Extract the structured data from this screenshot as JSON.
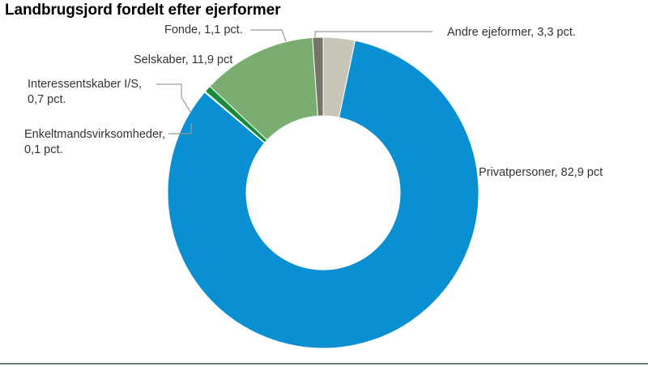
{
  "chart_data": {
    "type": "pie",
    "variant": "donut",
    "title": "Landbrugsjord fordelt efter ejerformer",
    "series": [
      {
        "name": "Andre ejeformer",
        "value": 3.3,
        "label": "Andre ejeformer, 3,3 pct.",
        "color": "#c9c6b9"
      },
      {
        "name": "Privatpersoner",
        "value": 82.9,
        "label": "Privatpersoner, 82,9 pct",
        "color": "#0a8fd3"
      },
      {
        "name": "Enkeltmandsvirksomheder",
        "value": 0.1,
        "label": [
          "Enkeltmandsvirksomheder,",
          "0,1 pct."
        ],
        "color": "#1e9440"
      },
      {
        "name": "Interessentskaber I/S",
        "value": 0.7,
        "label": [
          "Interessentskaber I/S,",
          "0,7 pct."
        ],
        "color": "#1a8a3a"
      },
      {
        "name": "Selskaber",
        "value": 11.9,
        "label": "Selskaber, 11,9 pct",
        "color": "#7aad70"
      },
      {
        "name": "Fonde",
        "value": 1.1,
        "label": "Fonde, 1,1 pct.",
        "color": "#757466"
      }
    ]
  }
}
